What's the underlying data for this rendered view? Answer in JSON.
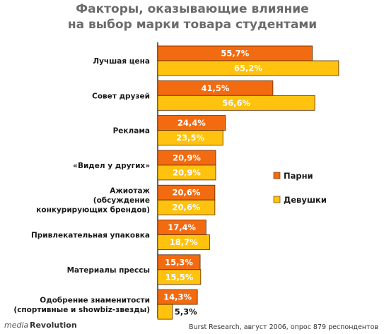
{
  "chart_data": {
    "type": "bar",
    "orientation": "horizontal",
    "title_lines": [
      "Факторы, оказывающие влияние",
      "на выбор марки товара студентами"
    ],
    "categories": [
      [
        "Лучшая цена"
      ],
      [
        "Совет друзей"
      ],
      [
        "Реклама"
      ],
      [
        "«Видел у других»"
      ],
      [
        "Ажиотаж",
        "(обсуждение",
        "конкурирующих брендов)"
      ],
      [
        "Привлекательная упаковка"
      ],
      [
        "Материалы прессы"
      ],
      [
        "Одобрение знаменитости",
        "(спортивные и showbiz-звезды)"
      ]
    ],
    "series": [
      {
        "name": "Парни",
        "color": "#f36b10",
        "values": [
          55.7,
          41.5,
          24.4,
          20.9,
          20.6,
          17.4,
          15.3,
          14.3
        ],
        "labels": [
          "55,7%",
          "41,5%",
          "24,4%",
          "20,9%",
          "20,6%",
          "17,4%",
          "15,3%",
          "14,3%"
        ]
      },
      {
        "name": "Девушки",
        "color": "#ffc20e",
        "values": [
          65.2,
          56.6,
          23.5,
          20.9,
          20.6,
          18.7,
          15.5,
          5.3
        ],
        "labels": [
          "65,2%",
          "56,6%",
          "23,5%",
          "20,9%",
          "20,6%",
          "18,7%",
          "15,5%",
          "5,3%"
        ]
      }
    ],
    "legend_position": "right",
    "grid": false,
    "source": "Burst Research, август 2006, опрос 879 респондентов",
    "logo": {
      "part1": "media",
      "part2": "Revolution"
    }
  }
}
